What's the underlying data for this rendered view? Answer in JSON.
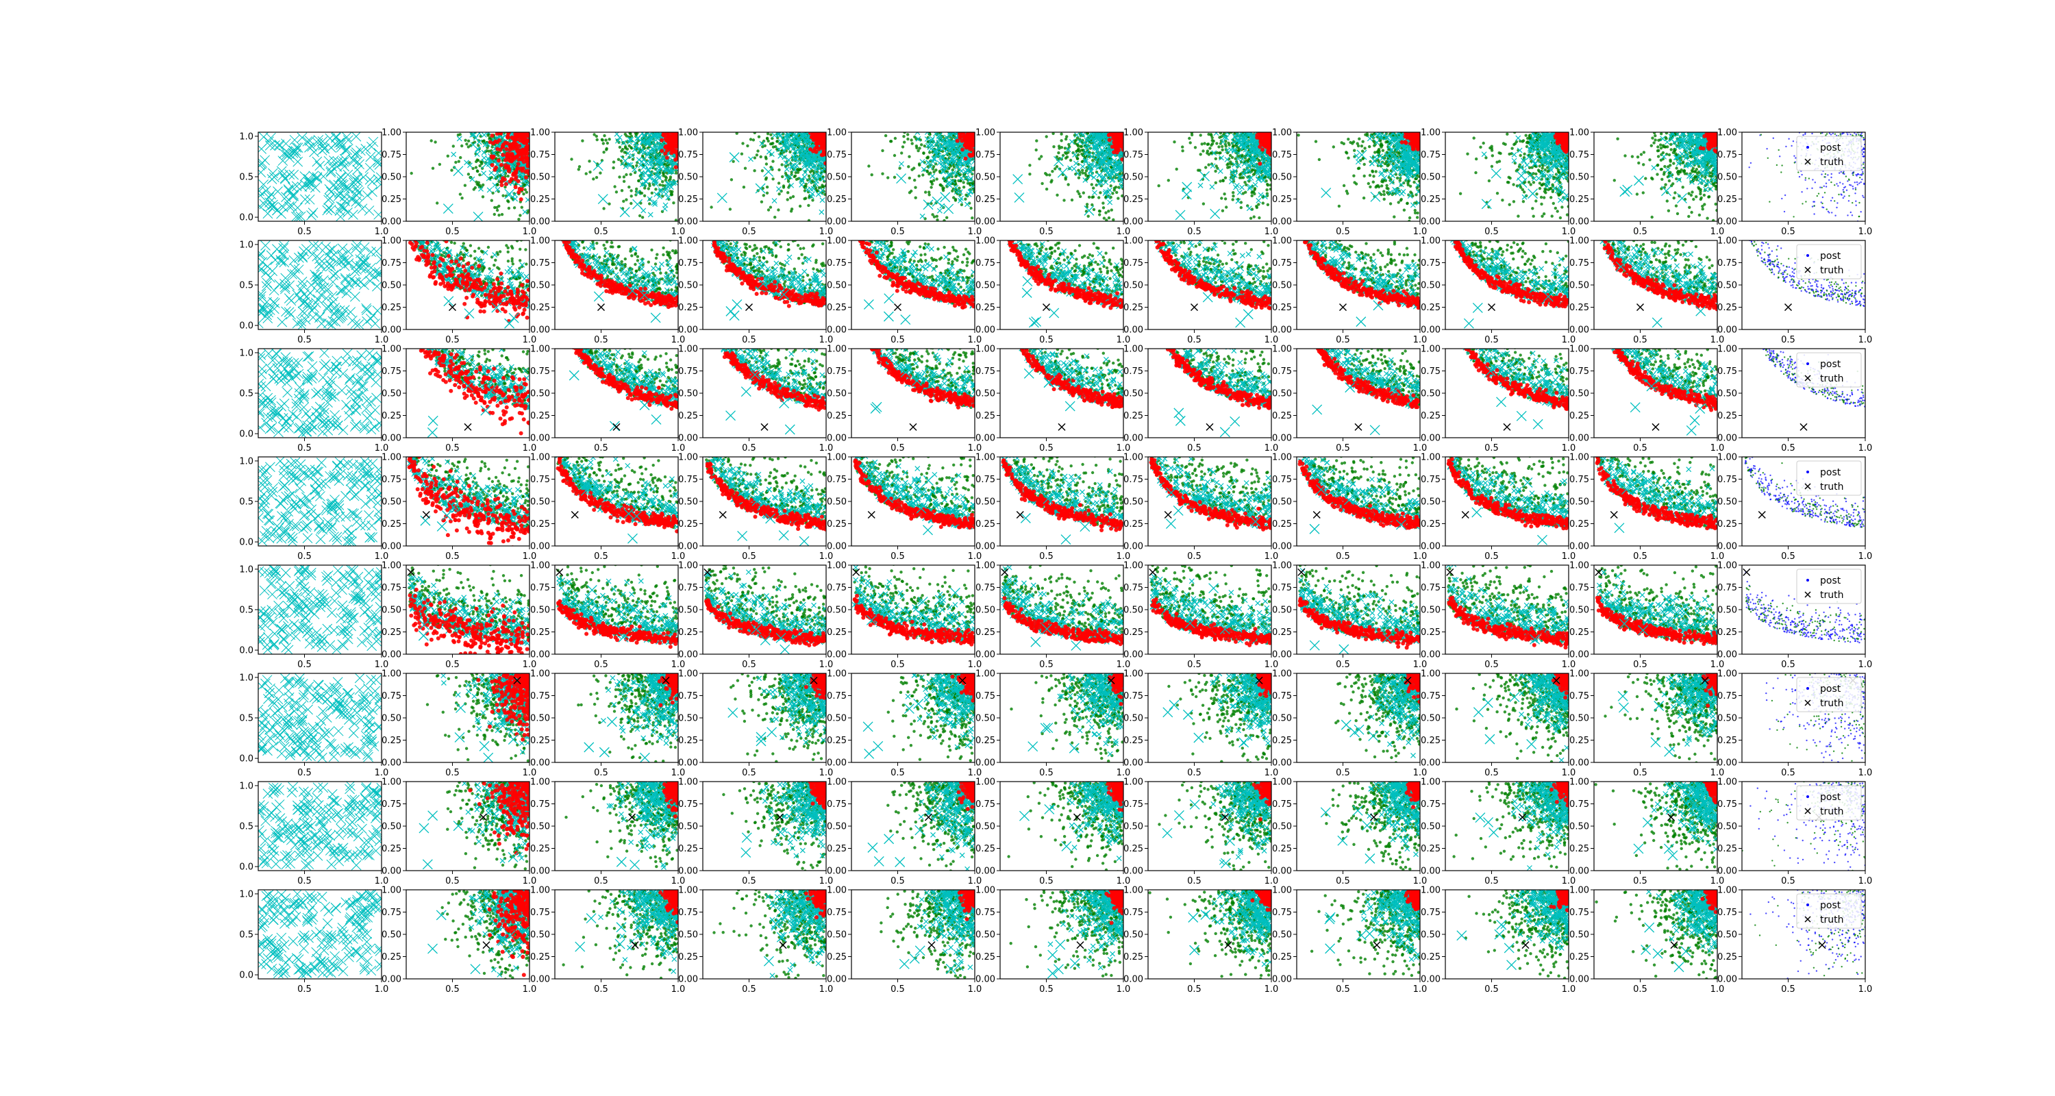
{
  "figure": {
    "grid_rows": 8,
    "grid_cols": 11,
    "background": "#ffffff",
    "colors": {
      "cyan": "#00bfbf",
      "green": "#008000",
      "red": "#ff0000",
      "blue": "#0000ff",
      "truth": "#000000"
    },
    "legend_labels": [
      "post",
      "truth"
    ]
  },
  "chart_data": {
    "type": "scatter",
    "description_of_layout": "8 rows x 11 columns of scatter subplots. Column 1: grid of cyan x markers over the unit square. Columns 2-10: green scatter, cyan x markers and red points concentrating toward the upper-right / along a curved band, plus a black x truth marker. Column 11: posterior (blue/green dots) with legend 'post' and 'truth'.",
    "col1_axes": {
      "xlim": [
        0.2,
        1.0
      ],
      "ylim": [
        -0.05,
        1.05
      ],
      "xticks": [
        "0.5",
        "1.0"
      ],
      "yticks": [
        "0.0",
        "0.5",
        "1.0"
      ]
    },
    "other_axes": {
      "xlim": [
        0.2,
        1.0
      ],
      "ylim": [
        0.0,
        1.0
      ],
      "xticks": [
        "0.5",
        "1.0"
      ],
      "yticks": [
        "0.00",
        "0.25",
        "0.50",
        "0.75",
        "1.00"
      ]
    },
    "rows": [
      {
        "row": 1,
        "pattern": "corner",
        "truth": null,
        "curve_k": null
      },
      {
        "row": 2,
        "pattern": "band",
        "truth": [
          0.5,
          0.25
        ],
        "curve_k": 0.25
      },
      {
        "row": 3,
        "pattern": "band",
        "truth": [
          0.6,
          0.12
        ],
        "curve_k": 0.33
      },
      {
        "row": 4,
        "pattern": "band",
        "truth": [
          0.33,
          0.35
        ],
        "curve_k": 0.2
      },
      {
        "row": 5,
        "pattern": "band",
        "truth": [
          0.23,
          0.92
        ],
        "curve_k": 0.12
      },
      {
        "row": 6,
        "pattern": "corner",
        "truth": [
          0.92,
          0.92
        ],
        "curve_k": null
      },
      {
        "row": 7,
        "pattern": "corner",
        "truth": [
          0.7,
          0.6
        ],
        "curve_k": null
      },
      {
        "row": 8,
        "pattern": "corner",
        "truth": [
          0.72,
          0.38
        ],
        "curve_k": null
      }
    ]
  }
}
